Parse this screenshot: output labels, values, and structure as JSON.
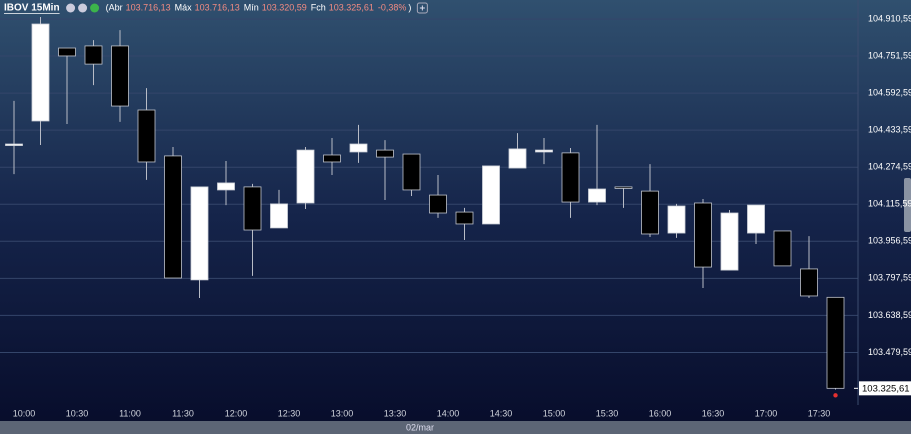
{
  "chart_data": {
    "type": "candlestick",
    "title": "IBOV 15Min",
    "header_fields": [
      {
        "label": "(Abr",
        "value": "103.716,13"
      },
      {
        "label": "Máx",
        "value": "103.716,13"
      },
      {
        "label": "Mín",
        "value": "103.320,59"
      },
      {
        "label": "Fch",
        "value": "103.325,61"
      }
    ],
    "change": "-0,38%",
    "close_paren": ")",
    "x_caption": "02/mar",
    "categories": [
      "10:00",
      null,
      "10:30",
      null,
      "11:00",
      null,
      "11:30",
      null,
      "12:00",
      null,
      "12:30",
      null,
      "13:00",
      null,
      "13:30",
      null,
      "14:00",
      null,
      "14:30",
      null,
      "15:00",
      null,
      "15:30",
      null,
      "16:00",
      null,
      "16:30",
      null,
      "17:00",
      null,
      "17:30",
      null
    ],
    "open": [
      104374,
      104473,
      104786,
      104795,
      104795,
      104520,
      104323,
      103791,
      104177,
      104190,
      104014,
      104121,
      104327,
      104340,
      104348,
      104331,
      104155,
      104082,
      104031,
      104271,
      104340,
      104336,
      104125,
      104190,
      104172,
      103992,
      104121,
      103833,
      103992,
      104001,
      103838,
      103716.13
    ],
    "high": [
      104559,
      104919,
      104786,
      104820,
      104863,
      104614,
      104361,
      104190,
      104301,
      104203,
      104177,
      104361,
      104400,
      104456,
      104391,
      104331,
      104241,
      104100,
      104280,
      104421,
      104400,
      104357,
      104456,
      104190,
      104288,
      104117,
      104138,
      104091,
      104112,
      104001,
      103979,
      103716.13
    ],
    "low": [
      104245,
      104370,
      104460,
      104627,
      104469,
      104220,
      103799,
      103713,
      104112,
      103808,
      104014,
      104095,
      104241,
      104293,
      104134,
      104151,
      104057,
      103962,
      104031,
      104271,
      104288,
      104057,
      104112,
      104100,
      103975,
      103971,
      103756,
      103833,
      103945,
      103851,
      103713,
      103320.59
    ],
    "close": [
      104374,
      104889,
      104752,
      104717,
      104537,
      104297,
      103799,
      104190,
      104207,
      104005,
      104117,
      104348,
      104297,
      104374,
      104318,
      104177,
      104078,
      104031,
      104280,
      104353,
      104348,
      104125,
      104181,
      104188,
      103988,
      104108,
      103846,
      104078,
      104112,
      103851,
      103722,
      103325.61
    ],
    "up_color": "#ffffff",
    "down_color": "#000000",
    "ylim": [
      103275.5,
      104992.1
    ],
    "yticks": [
      {
        "value": 104910.59,
        "label": "104.910,59"
      },
      {
        "value": 104751.59,
        "label": "104.751,59"
      },
      {
        "value": 104592.59,
        "label": "104.592,59"
      },
      {
        "value": 104433.59,
        "label": "104.433,59"
      },
      {
        "value": 104274.59,
        "label": "104.274,59"
      },
      {
        "value": 104115.59,
        "label": "104.115,59"
      },
      {
        "value": 103956.59,
        "label": "103.956,59"
      },
      {
        "value": 103797.59,
        "label": "103.797,59"
      },
      {
        "value": 103638.59,
        "label": "103.638,59"
      },
      {
        "value": 103479.59,
        "label": "103.479,59"
      }
    ],
    "last_price": {
      "value": 103325.61,
      "label": "103.325,61"
    },
    "grid": true
  }
}
